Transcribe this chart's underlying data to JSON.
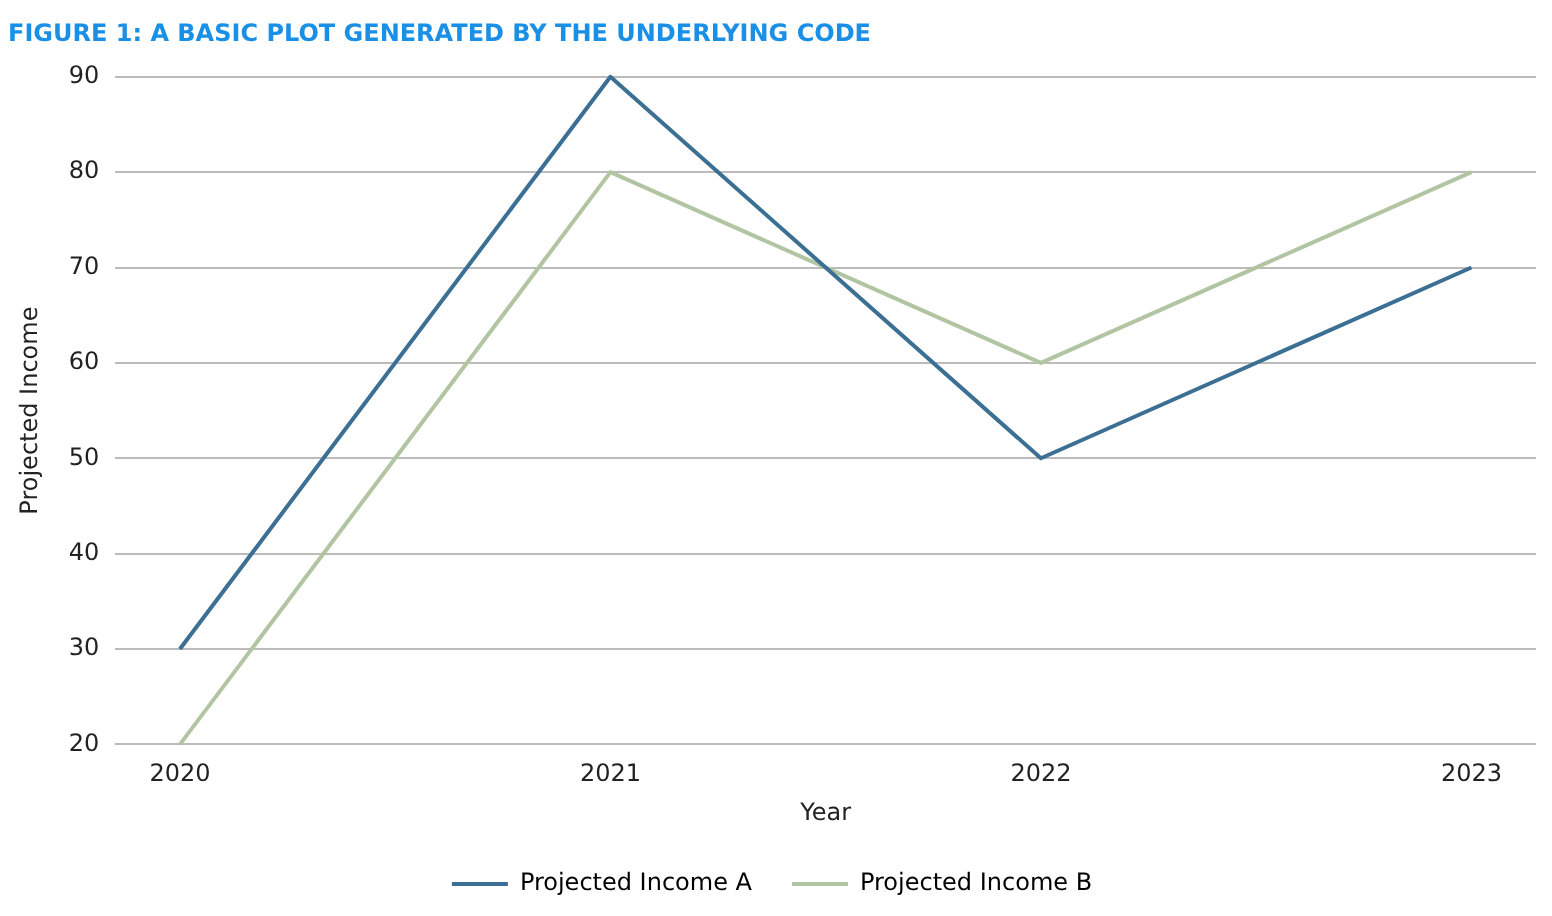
{
  "chart_data": {
    "type": "line",
    "title": "FIGURE 1: A BASIC PLOT GENERATED BY THE UNDERLYING CODE",
    "xlabel": "Year",
    "ylabel": "Projected Income",
    "x": [
      2020,
      2021,
      2022,
      2023
    ],
    "series": [
      {
        "name": "Projected Income A",
        "color": "#3b6f93",
        "values": [
          30,
          90,
          50,
          70
        ]
      },
      {
        "name": "Projected Income B",
        "color": "#b2c5a3",
        "values": [
          20,
          80,
          60,
          80
        ]
      }
    ],
    "xlim": [
      2019.85,
      2023.15
    ],
    "xticks": [
      2020,
      2021,
      2022,
      2023
    ],
    "ylim": [
      20,
      90
    ],
    "yticks": [
      20,
      30,
      40,
      50,
      60,
      70,
      80,
      90
    ],
    "grid": "y",
    "legend": "bottom",
    "marker": "none",
    "line_style": "solid"
  }
}
